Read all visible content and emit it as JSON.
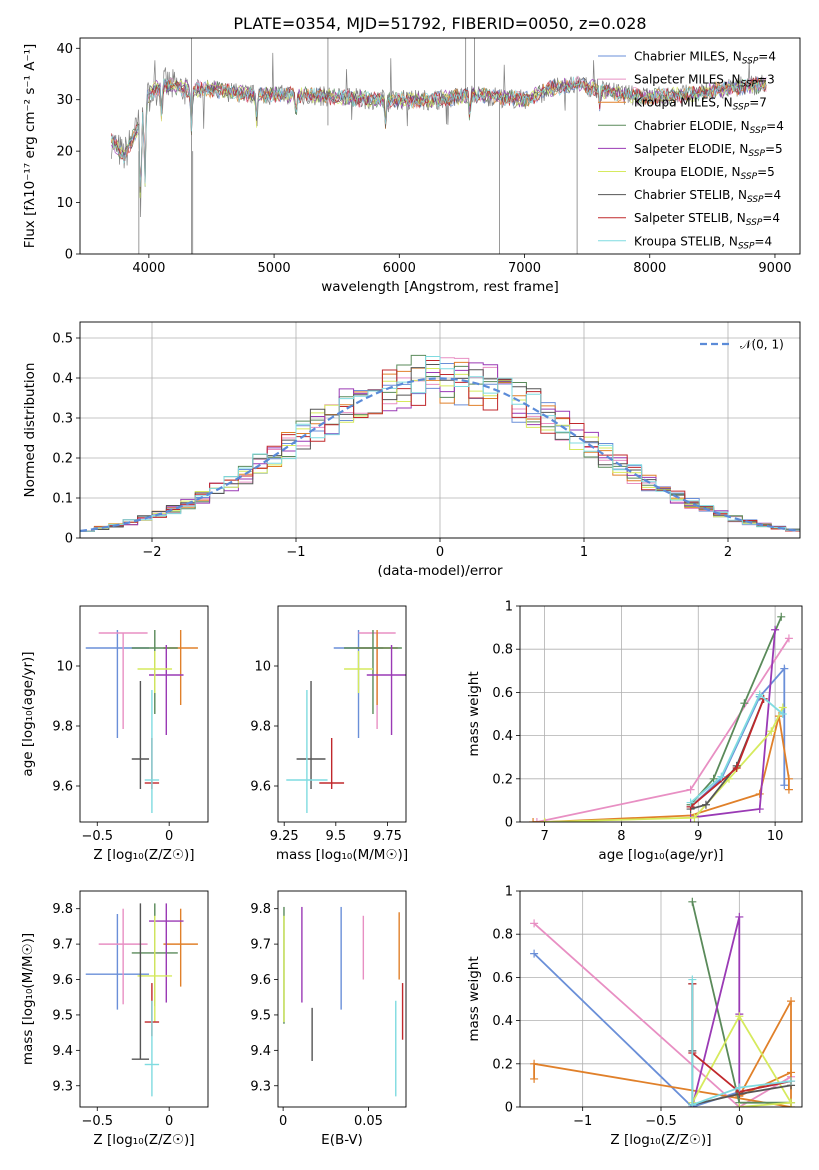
{
  "figure": {
    "title": "PLATE=0354, MJD=51792, FIBERID=0050, z=0.028"
  },
  "chart_data": [
    {
      "id": "spectrum",
      "type": "line",
      "title": "PLATE=0354, MJD=51792, FIBERID=0050, z=0.028",
      "xlabel": "wavelength [Angstrom, rest frame]",
      "ylabel": "Flux [f_λ 10^-17 erg cm^-2 s^-1 A^-1]",
      "xlim": [
        3450,
        9200
      ],
      "ylim": [
        0,
        42
      ],
      "xticks": [
        4000,
        5000,
        6000,
        7000,
        8000,
        9000
      ],
      "yticks": [
        0,
        10,
        20,
        30,
        40
      ],
      "grid": false,
      "legend_position": "top-right",
      "series": [
        {
          "name": "Chabrier MILES, N_SSP=4",
          "color": "#6a8fd8"
        },
        {
          "name": "Salpeter MILES, N_SSP=3",
          "color": "#e88fc3"
        },
        {
          "name": "Kroupa MILES, N_SSP=7",
          "color": "#e0802a"
        },
        {
          "name": "Chabrier ELODIE, N_SSP=4",
          "color": "#5a8a5a"
        },
        {
          "name": "Salpeter ELODIE, N_SSP=5",
          "color": "#9a3ab5"
        },
        {
          "name": "Kroupa ELODIE, N_SSP=5",
          "color": "#d6ea5e"
        },
        {
          "name": "Chabrier STELIB, N_SSP=4",
          "color": "#555555"
        },
        {
          "name": "Salpeter STELIB, N_SSP=4",
          "color": "#c0282c"
        },
        {
          "name": "Kroupa STELIB, N_SSP=4",
          "color": "#7fdbe0"
        }
      ],
      "data_color": "#808080",
      "spectrum_anchor_x": [
        3700,
        3800,
        3900,
        4000,
        4100,
        4300,
        4500,
        4800,
        5000,
        5200,
        5500,
        5800,
        6000,
        6300,
        6600,
        6800,
        7000,
        7200,
        7400,
        7600,
        7800,
        8000,
        8300,
        8600,
        8900
      ],
      "spectrum_anchor_y": [
        22,
        19,
        24,
        31,
        33,
        32,
        32,
        31,
        31,
        31,
        30.5,
        30,
        30,
        30,
        31,
        30.5,
        30,
        32,
        33,
        32,
        31,
        30.5,
        31,
        32,
        33
      ]
    },
    {
      "id": "residuals",
      "type": "bar",
      "xlabel": "(data-model)/error",
      "ylabel": "Normed distribution",
      "xlim": [
        -2.5,
        2.5
      ],
      "ylim": [
        0,
        0.54
      ],
      "xticks": [
        -2,
        -1,
        0,
        1,
        2
      ],
      "yticks": [
        0.0,
        0.1,
        0.2,
        0.3,
        0.4,
        0.5
      ],
      "grid": true,
      "legend_position": "top-right",
      "reference_curve": {
        "name": "𝒩(0, 1)",
        "color": "#5b8bd8"
      }
    },
    {
      "id": "age-vs-Z",
      "type": "scatter",
      "xlabel": "Z [log10(Z/Z☉)]",
      "ylabel": "age  [log10(age/yr)]",
      "xlim": [
        -0.62,
        0.27
      ],
      "ylim": [
        9.48,
        10.2
      ],
      "xticks": [
        -0.5,
        0.0
      ],
      "yticks": [
        9.6,
        9.8,
        10.0
      ],
      "points": [
        {
          "x": -0.36,
          "y": 10.06,
          "xerr": 0.22,
          "yerr_lo": 0.3,
          "yerr_hi": 0.06,
          "color": "#6a8fd8"
        },
        {
          "x": -0.32,
          "y": 10.11,
          "xerr": 0.17,
          "yerr_lo": 0.32,
          "yerr_hi": 0.0,
          "color": "#e88fc3"
        },
        {
          "x": 0.08,
          "y": 10.06,
          "xerr": 0.12,
          "yerr_lo": 0.19,
          "yerr_hi": 0.06,
          "color": "#e0802a"
        },
        {
          "x": -0.1,
          "y": 10.06,
          "xerr": 0.16,
          "yerr_lo": 0.22,
          "yerr_hi": 0.06,
          "color": "#5a8a5a"
        },
        {
          "x": -0.02,
          "y": 9.97,
          "xerr": 0.12,
          "yerr_lo": 0.2,
          "yerr_hi": 0.1,
          "color": "#9a3ab5"
        },
        {
          "x": -0.1,
          "y": 9.99,
          "xerr": 0.12,
          "yerr_lo": 0.08,
          "yerr_hi": 0.06,
          "color": "#d6ea5e"
        },
        {
          "x": -0.2,
          "y": 9.69,
          "xerr": 0.06,
          "yerr_lo": 0.1,
          "yerr_hi": 0.26,
          "color": "#555555"
        },
        {
          "x": -0.12,
          "y": 9.61,
          "xerr": 0.05,
          "yerr_lo": 0.02,
          "yerr_hi": 0.15,
          "color": "#c0282c"
        },
        {
          "x": -0.12,
          "y": 9.62,
          "xerr": 0.05,
          "yerr_lo": 0.11,
          "yerr_hi": 0.3,
          "color": "#7fdbe0"
        }
      ]
    },
    {
      "id": "age-vs-mass",
      "type": "scatter",
      "xlabel": "mass [log10(M/M☉)]",
      "ylabel": "",
      "xlim": [
        9.22,
        9.84
      ],
      "ylim": [
        9.48,
        10.2
      ],
      "xticks": [
        9.25,
        9.5,
        9.75
      ],
      "yticks": [
        9.6,
        9.8,
        10.0
      ],
      "points": [
        {
          "x": 9.61,
          "y": 10.06,
          "xerr": 0.12,
          "yerr_lo": 0.3,
          "yerr_hi": 0.06,
          "color": "#6a8fd8"
        },
        {
          "x": 9.7,
          "y": 10.11,
          "xerr": 0.09,
          "yerr_lo": 0.32,
          "yerr_hi": 0.0,
          "color": "#e88fc3"
        },
        {
          "x": 9.7,
          "y": 10.06,
          "xerr": 0.1,
          "yerr_lo": 0.19,
          "yerr_hi": 0.06,
          "color": "#e0802a"
        },
        {
          "x": 9.68,
          "y": 10.06,
          "xerr": 0.14,
          "yerr_lo": 0.22,
          "yerr_hi": 0.06,
          "color": "#5a8a5a"
        },
        {
          "x": 9.77,
          "y": 9.97,
          "xerr": 0.12,
          "yerr_lo": 0.2,
          "yerr_hi": 0.1,
          "color": "#9a3ab5"
        },
        {
          "x": 9.61,
          "y": 9.99,
          "xerr": 0.07,
          "yerr_lo": 0.08,
          "yerr_hi": 0.06,
          "color": "#d6ea5e"
        },
        {
          "x": 9.38,
          "y": 9.69,
          "xerr": 0.07,
          "yerr_lo": 0.1,
          "yerr_hi": 0.26,
          "color": "#555555"
        },
        {
          "x": 9.48,
          "y": 9.61,
          "xerr": 0.06,
          "yerr_lo": 0.02,
          "yerr_hi": 0.15,
          "color": "#c0282c"
        },
        {
          "x": 9.36,
          "y": 9.62,
          "xerr": 0.1,
          "yerr_lo": 0.11,
          "yerr_hi": 0.3,
          "color": "#7fdbe0"
        }
      ]
    },
    {
      "id": "weight-vs-age",
      "type": "line",
      "xlabel": "age  [log10(age/yr)]",
      "ylabel": "mass weight",
      "xlim": [
        6.68,
        10.35
      ],
      "ylim": [
        0,
        1.0
      ],
      "xticks": [
        7,
        8,
        9,
        10
      ],
      "yticks": [
        0.0,
        0.2,
        0.4,
        0.6,
        0.8,
        1.0
      ],
      "grid": true,
      "series": [
        {
          "color": "#6a8fd8",
          "x": [
            8.9,
            9.3,
            9.8,
            10.12,
            10.12
          ],
          "y": [
            0.07,
            0.2,
            0.58,
            0.71,
            0.17
          ]
        },
        {
          "color": "#e88fc3",
          "x": [
            6.9,
            8.9,
            10.18
          ],
          "y": [
            0.0,
            0.15,
            0.85
          ]
        },
        {
          "color": "#e0802a",
          "x": [
            6.85,
            7.0,
            8.9,
            9.8,
            10.05,
            10.18,
            10.18
          ],
          "y": [
            0.0,
            0.0,
            0.03,
            0.13,
            0.49,
            0.2,
            0.15
          ]
        },
        {
          "color": "#5a8a5a",
          "x": [
            8.9,
            9.2,
            9.6,
            10.08
          ],
          "y": [
            0.08,
            0.2,
            0.55,
            0.95
          ]
        },
        {
          "color": "#9a3ab5",
          "x": [
            8.9,
            9.8,
            10.0
          ],
          "y": [
            0.02,
            0.06,
            0.89
          ]
        },
        {
          "color": "#d6ea5e",
          "x": [
            7.0,
            8.95,
            9.4,
            9.95,
            10.1
          ],
          "y": [
            0.0,
            0.02,
            0.2,
            0.42,
            0.53
          ]
        },
        {
          "color": "#555555",
          "x": [
            8.9,
            9.1,
            9.5,
            9.85
          ],
          "y": [
            0.06,
            0.08,
            0.26,
            0.57
          ]
        },
        {
          "color": "#c0282c",
          "x": [
            8.9,
            9.5,
            9.85
          ],
          "y": [
            0.07,
            0.25,
            0.57
          ]
        },
        {
          "color": "#7fdbe0",
          "x": [
            8.9,
            9.3,
            9.8,
            10.1
          ],
          "y": [
            0.09,
            0.21,
            0.59,
            0.5
          ]
        }
      ]
    },
    {
      "id": "mass-vs-Z",
      "type": "scatter",
      "xlabel": "Z [log10(Z/Z☉)]",
      "ylabel": "mass [log10(M/M☉)]",
      "xlim": [
        -0.62,
        0.27
      ],
      "ylim": [
        9.24,
        9.85
      ],
      "xticks": [
        -0.5,
        0.0
      ],
      "yticks": [
        9.3,
        9.4,
        9.5,
        9.6,
        9.7,
        9.8
      ],
      "points": [
        {
          "x": -0.36,
          "y": 9.615,
          "xerr": 0.22,
          "yerr_lo": 0.1,
          "yerr_hi": 0.17,
          "color": "#6a8fd8"
        },
        {
          "x": -0.32,
          "y": 9.7,
          "xerr": 0.17,
          "yerr_lo": 0.17,
          "yerr_hi": 0.1,
          "color": "#e88fc3"
        },
        {
          "x": 0.08,
          "y": 9.7,
          "xerr": 0.12,
          "yerr_lo": 0.12,
          "yerr_hi": 0.1,
          "color": "#e0802a"
        },
        {
          "x": -0.1,
          "y": 9.675,
          "xerr": 0.16,
          "yerr_lo": 0.15,
          "yerr_hi": 0.14,
          "color": "#5a8a5a"
        },
        {
          "x": -0.02,
          "y": 9.765,
          "xerr": 0.12,
          "yerr_lo": 0.23,
          "yerr_hi": 0.05,
          "color": "#9a3ab5"
        },
        {
          "x": -0.1,
          "y": 9.61,
          "xerr": 0.12,
          "yerr_lo": 0.13,
          "yerr_hi": 0.17,
          "color": "#d6ea5e"
        },
        {
          "x": -0.2,
          "y": 9.375,
          "xerr": 0.06,
          "yerr_lo": 0.0,
          "yerr_hi": 0.44,
          "color": "#555555"
        },
        {
          "x": -0.12,
          "y": 9.48,
          "xerr": 0.05,
          "yerr_lo": 0.04,
          "yerr_hi": 0.11,
          "color": "#c0282c"
        },
        {
          "x": -0.12,
          "y": 9.36,
          "xerr": 0.05,
          "yerr_lo": 0.09,
          "yerr_hi": 0.18,
          "color": "#7fdbe0"
        }
      ]
    },
    {
      "id": "mass-vs-ebv",
      "type": "scatter",
      "xlabel": "E(B-V)",
      "ylabel": "",
      "xlim": [
        -0.003,
        0.072
      ],
      "ylim": [
        9.24,
        9.85
      ],
      "xticks": [
        0.0,
        0.05
      ],
      "yticks": [
        9.3,
        9.4,
        9.5,
        9.6,
        9.7,
        9.8
      ],
      "points": [
        {
          "x": 0.034,
          "y": 9.615,
          "yerr_lo": 0.1,
          "yerr_hi": 0.19,
          "color": "#6a8fd8"
        },
        {
          "x": 0.047,
          "y": 9.7,
          "yerr_lo": 0.1,
          "yerr_hi": 0.08,
          "color": "#e88fc3"
        },
        {
          "x": 0.068,
          "y": 9.7,
          "yerr_lo": 0.1,
          "yerr_hi": 0.09,
          "color": "#e0802a"
        },
        {
          "x": 0.0005,
          "y": 9.675,
          "yerr_lo": 0.2,
          "yerr_hi": 0.13,
          "color": "#5a8a5a"
        },
        {
          "x": 0.011,
          "y": 9.765,
          "yerr_lo": 0.23,
          "yerr_hi": 0.04,
          "color": "#9a3ab5"
        },
        {
          "x": 0.0005,
          "y": 9.61,
          "yerr_lo": 0.13,
          "yerr_hi": 0.17,
          "color": "#d6ea5e"
        },
        {
          "x": 0.017,
          "y": 9.45,
          "yerr_lo": 0.08,
          "yerr_hi": 0.07,
          "color": "#555555"
        },
        {
          "x": 0.07,
          "y": 9.51,
          "yerr_lo": 0.08,
          "yerr_hi": 0.08,
          "color": "#c0282c"
        },
        {
          "x": 0.066,
          "y": 9.36,
          "yerr_lo": 0.09,
          "yerr_hi": 0.18,
          "color": "#7fdbe0"
        }
      ]
    },
    {
      "id": "weight-vs-Z",
      "type": "line",
      "xlabel": "Z [log10(Z/Z☉)]",
      "ylabel": "mass weight",
      "xlim": [
        -1.4,
        0.4
      ],
      "ylim": [
        0,
        1.0
      ],
      "xticks": [
        -1.0,
        -0.5,
        0.0
      ],
      "yticks": [
        0.0,
        0.2,
        0.4,
        0.6,
        0.8,
        1.0
      ],
      "grid": true,
      "series": [
        {
          "color": "#6a8fd8",
          "x": [
            -1.31,
            -0.3,
            0.0,
            0.33
          ],
          "y": [
            0.71,
            0.0,
            0.07,
            0.12
          ]
        },
        {
          "color": "#e88fc3",
          "x": [
            -1.31,
            0.0,
            0.33
          ],
          "y": [
            0.85,
            0.0,
            0.14
          ]
        },
        {
          "color": "#e0802a",
          "x": [
            -1.31,
            -1.31,
            0.33,
            0.33,
            0.0,
            0.33
          ],
          "y": [
            0.13,
            0.2,
            0.0,
            0.49,
            0.05,
            0.16
          ]
        },
        {
          "color": "#5a8a5a",
          "x": [
            -0.3,
            0.0,
            0.33
          ],
          "y": [
            0.95,
            0.02,
            0.02
          ]
        },
        {
          "color": "#9a3ab5",
          "x": [
            -0.3,
            0.0,
            0.0,
            0.0
          ],
          "y": [
            0.0,
            0.88,
            0.43,
            0.06
          ]
        },
        {
          "color": "#d6ea5e",
          "x": [
            -0.3,
            0.0,
            0.33,
            0.0
          ],
          "y": [
            0.02,
            0.42,
            0.02,
            0.0
          ]
        },
        {
          "color": "#555555",
          "x": [
            -0.3,
            -0.3,
            -0.3,
            0.0,
            0.33
          ],
          "y": [
            0.57,
            0.26,
            0.01,
            0.06,
            0.1
          ]
        },
        {
          "color": "#c0282c",
          "x": [
            -0.3,
            -0.3,
            0.0,
            0.33
          ],
          "y": [
            0.57,
            0.25,
            0.07,
            0.12
          ]
        },
        {
          "color": "#7fdbe0",
          "x": [
            -0.3,
            -0.3,
            0.0,
            0.33
          ],
          "y": [
            0.59,
            0.01,
            0.09,
            0.12
          ]
        }
      ]
    }
  ]
}
